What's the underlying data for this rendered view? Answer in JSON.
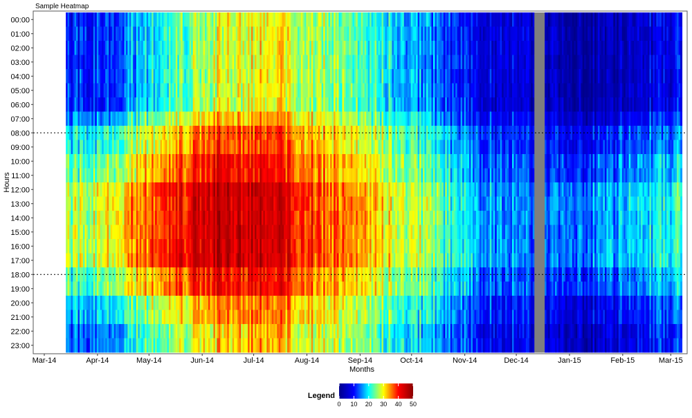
{
  "chart_data": {
    "type": "heatmap",
    "title": "Sample Heatmap",
    "xlabel": "Months",
    "ylabel": "Hours",
    "x_ticks": [
      "Mar-14",
      "Apr-14",
      "May-14",
      "Jun-14",
      "Jul-14",
      "Aug-14",
      "Sep-14",
      "Oct-14",
      "Nov-14",
      "Dec-14",
      "Jan-15",
      "Feb-15",
      "Mar-15"
    ],
    "y_ticks": [
      "00:00",
      "01:00",
      "02:00",
      "03:00",
      "04:00",
      "05:00",
      "06:00",
      "07:00",
      "08:00",
      "09:00",
      "10:00",
      "11:00",
      "12:00",
      "13:00",
      "14:00",
      "15:00",
      "16:00",
      "17:00",
      "18:00",
      "19:00",
      "20:00",
      "21:00",
      "22:00",
      "23:00"
    ],
    "x_range": [
      "2014-03-01",
      "2015-03-17"
    ],
    "data_start": "2014-03-20",
    "data_end": "2015-03-13",
    "missing_period": [
      "2014-12-18",
      "2014-12-23"
    ],
    "reference_lines": [
      "08:00",
      "18:00"
    ],
    "value_range": [
      0,
      50
    ],
    "legend": {
      "title": "Legend",
      "ticks": [
        0,
        10,
        20,
        30,
        40,
        50
      ],
      "colors": [
        "#00008B",
        "#0000FF",
        "#00FFFF",
        "#FFFF00",
        "#FF0000",
        "#8B0000"
      ]
    },
    "monthly_profile": [
      {
        "month": "Mar-14",
        "night": 10,
        "day": 25
      },
      {
        "month": "Apr-14",
        "night": 12,
        "day": 30
      },
      {
        "month": "May-14",
        "night": 22,
        "day": 40
      },
      {
        "month": "Jun-14",
        "night": 28,
        "day": 45
      },
      {
        "month": "Jul-14",
        "night": 30,
        "day": 44
      },
      {
        "month": "Aug-14",
        "night": 27,
        "day": 38
      },
      {
        "month": "Sep-14",
        "night": 22,
        "day": 33
      },
      {
        "month": "Oct-14",
        "night": 15,
        "day": 26
      },
      {
        "month": "Nov-14",
        "night": 8,
        "day": 17
      },
      {
        "month": "Dec-14",
        "night": 6,
        "day": 14
      },
      {
        "month": "Jan-15",
        "night": 2,
        "day": 15
      },
      {
        "month": "Feb-15",
        "night": 5,
        "day": 18
      },
      {
        "month": "Mar-15",
        "night": 10,
        "day": 22
      }
    ]
  }
}
